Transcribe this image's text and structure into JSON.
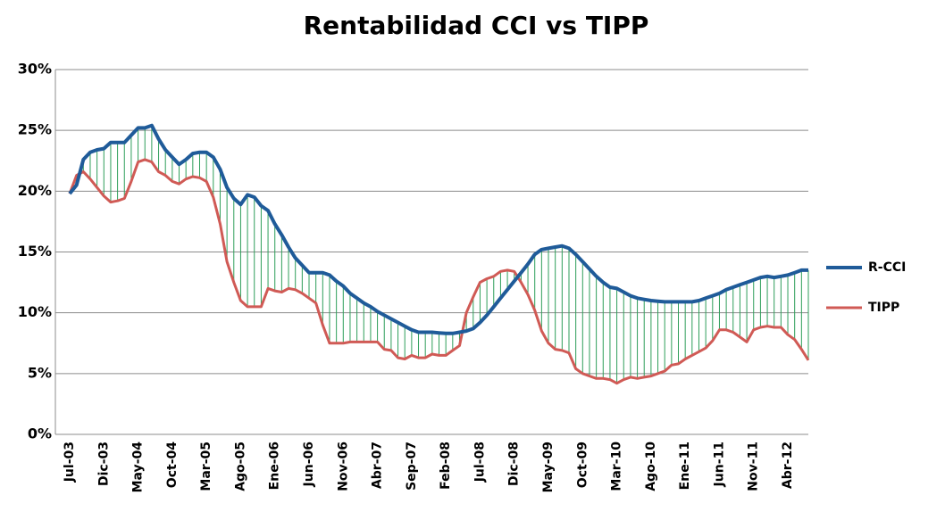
{
  "chart_data": {
    "type": "line",
    "title": "Rentabilidad CCI vs TIPP",
    "categories": [
      "Jul-03",
      null,
      null,
      null,
      null,
      "Dic-03",
      null,
      null,
      null,
      null,
      "May-04",
      null,
      null,
      null,
      null,
      "Oct-04",
      null,
      null,
      null,
      null,
      "Mar-05",
      null,
      null,
      null,
      null,
      "Ago-05",
      null,
      null,
      null,
      null,
      "Ene-06",
      null,
      null,
      null,
      null,
      "Jun-06",
      null,
      null,
      null,
      null,
      "Nov-06",
      null,
      null,
      null,
      null,
      "Abr-07",
      null,
      null,
      null,
      null,
      "Sep-07",
      null,
      null,
      null,
      null,
      "Feb-08",
      null,
      null,
      null,
      null,
      "Jul-08",
      null,
      null,
      null,
      null,
      "Dic-08",
      null,
      null,
      null,
      null,
      "May-09",
      null,
      null,
      null,
      null,
      "Oct-09",
      null,
      null,
      null,
      null,
      "Mar-10",
      null,
      null,
      null,
      null,
      "Ago-10",
      null,
      null,
      null,
      null,
      "Ene-11",
      null,
      null,
      null,
      null,
      "Jun-11",
      null,
      null,
      null,
      null,
      "Nov-11",
      null,
      null,
      null,
      null,
      "Abr-12",
      null,
      null,
      null
    ],
    "series": [
      {
        "name": "R-CCI",
        "color": "#1f5b99",
        "values": [
          19.8,
          20.5,
          22.6,
          23.2,
          23.4,
          23.5,
          24.0,
          24.0,
          24.0,
          24.6,
          25.2,
          25.2,
          25.4,
          24.3,
          23.4,
          22.8,
          22.2,
          22.6,
          23.1,
          23.2,
          23.2,
          22.8,
          21.8,
          20.3,
          19.4,
          18.9,
          19.7,
          19.5,
          18.8,
          18.4,
          17.3,
          16.4,
          15.4,
          14.5,
          13.9,
          13.3,
          13.3,
          13.3,
          13.1,
          12.6,
          12.2,
          11.6,
          11.2,
          10.8,
          10.5,
          10.1,
          9.8,
          9.5,
          9.2,
          8.9,
          8.6,
          8.4,
          8.4,
          8.4,
          8.35,
          8.3,
          8.3,
          8.4,
          8.5,
          8.7,
          9.2,
          9.8,
          10.5,
          11.2,
          11.9,
          12.6,
          13.3,
          14.0,
          14.8,
          15.2,
          15.3,
          15.4,
          15.5,
          15.3,
          14.8,
          14.2,
          13.6,
          13.0,
          12.5,
          12.1,
          12.0,
          11.7,
          11.4,
          11.2,
          11.1,
          11.0,
          10.95,
          10.9,
          10.9,
          10.9,
          10.9,
          10.9,
          11.0,
          11.2,
          11.4,
          11.6,
          11.9,
          12.1,
          12.3,
          12.5,
          12.7,
          12.9,
          13.0,
          12.9,
          13.0,
          13.1,
          13.3,
          13.5,
          13.5
        ]
      },
      {
        "name": "TIPP",
        "color": "#d05a55",
        "values": [
          19.8,
          21.3,
          21.6,
          21.0,
          20.3,
          19.6,
          19.1,
          19.2,
          19.4,
          20.8,
          22.4,
          22.6,
          22.4,
          21.6,
          21.3,
          20.8,
          20.6,
          21.0,
          21.2,
          21.1,
          20.8,
          19.5,
          17.3,
          14.2,
          12.5,
          11.0,
          10.5,
          10.5,
          10.5,
          12.0,
          11.8,
          11.7,
          12.0,
          11.9,
          11.6,
          11.2,
          10.8,
          9.0,
          7.5,
          7.5,
          7.5,
          7.6,
          7.6,
          7.6,
          7.6,
          7.6,
          7.0,
          6.9,
          6.3,
          6.2,
          6.5,
          6.3,
          6.3,
          6.6,
          6.5,
          6.5,
          6.9,
          7.3,
          10.0,
          11.3,
          12.5,
          12.8,
          13.0,
          13.4,
          13.5,
          13.4,
          12.5,
          11.5,
          10.2,
          8.5,
          7.5,
          7.0,
          6.9,
          6.7,
          5.4,
          5.0,
          4.8,
          4.6,
          4.6,
          4.5,
          4.2,
          4.5,
          4.7,
          4.6,
          4.7,
          4.8,
          5.0,
          5.2,
          5.7,
          5.8,
          6.2,
          6.5,
          6.8,
          7.1,
          7.7,
          8.6,
          8.6,
          8.4,
          8.0,
          7.6,
          8.6,
          8.8,
          8.9,
          8.8,
          8.8,
          8.2,
          7.8,
          7.0,
          6.1
        ]
      }
    ],
    "hatch_color": "#2e9e5a",
    "ylim": [
      0,
      30
    ],
    "yticks": [
      {
        "value": 0,
        "label": "0%"
      },
      {
        "value": 5,
        "label": "5%"
      },
      {
        "value": 10,
        "label": "10%"
      },
      {
        "value": 15,
        "label": "15%"
      },
      {
        "value": 20,
        "label": "20%"
      },
      {
        "value": 25,
        "label": "25%"
      },
      {
        "value": 30,
        "label": "30%"
      }
    ],
    "grid": true,
    "legend": "right"
  }
}
